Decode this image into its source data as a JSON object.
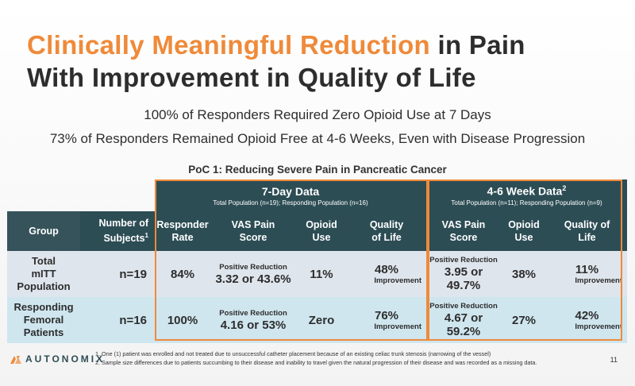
{
  "title": {
    "highlight": "Clinically Meaningful Reduction",
    "rest_line1": " in Pain",
    "line2": "With Improvement in Quality of Life"
  },
  "subtitles": [
    "100% of Responders Required Zero Opioid Use at 7 Days",
    "73% of Responders Remained Opioid Free at 4-6 Weeks, Even with Disease Progression"
  ],
  "poc_title": "PoC 1: Reducing Severe Pain in Pancreatic Cancer",
  "groups": {
    "seven_day": {
      "title": "7-Day Data",
      "subtitle": "Total Population (n=19); Responding Population (n=16)"
    },
    "four_six_week": {
      "title": "4-6 Week Data",
      "sup": "2",
      "subtitle": "Total Population (n=11); Responding Population (n=9)"
    }
  },
  "columns": {
    "group": "Group",
    "subjects_line1": "Number of",
    "subjects_line2": "Subjects",
    "subjects_sup": "1",
    "responder_line1": "Responder",
    "responder_line2": "Rate",
    "vas_line1": "VAS Pain",
    "vas_line2": "Score",
    "opioid_line1": "Opioid",
    "opioid_line2": "Use",
    "qol_line1": "Quality",
    "qol_line2": "of Life",
    "vas2_line1": "VAS Pain",
    "vas2_line2": "Score",
    "opioid2_line1": "Opioid",
    "opioid2_line2": "Use",
    "qol2_line1": "Quality of",
    "qol2_line2": "Life"
  },
  "rows": [
    {
      "group_line1": "Total",
      "group_line2": "mITT",
      "group_line3": "Population",
      "n": "n=19",
      "responder": "84%",
      "vas_label": "Positive Reduction",
      "vas_value": "3.32 or 43.6%",
      "opioid": "11%",
      "qol_value": "48%",
      "qol_label": "Improvement",
      "vas2_label": "Positive Reduction",
      "vas2_value": "3.95 or 49.7%",
      "opioid2": "38%",
      "qol2_value": "11%",
      "qol2_label": "Improvement"
    },
    {
      "group_line1": "Responding",
      "group_line2": "Femoral",
      "group_line3": "Patients",
      "n": "n=16",
      "responder": "100%",
      "vas_label": "Positive Reduction",
      "vas_value": "4.16 or 53%",
      "opioid": "Zero",
      "qol_value": "76%",
      "qol_label": "Improvement",
      "vas2_label": "Positive Reduction",
      "vas2_value": "4.67 or 59.2%",
      "opioid2": "27%",
      "qol2_value": "42%",
      "qol2_label": "Improvement"
    }
  ],
  "footnotes": [
    "1. One (1) patient was enrolled and not treated due to unsuccessful catheter placement because of an existing celiac trunk stenosis (narrowing of the vessel)",
    "2. Sample size differences due to patients succumbing to their disease and inability to travel given the natural progression of their disease and was recorded as a missing data."
  ],
  "logo_text": "AUTONOMIX",
  "page_number": "11",
  "colors": {
    "accent": "#ef8a3a",
    "header": "#2d4d55",
    "row1": "#dfe5ec",
    "row2": "#cfe6ef"
  }
}
